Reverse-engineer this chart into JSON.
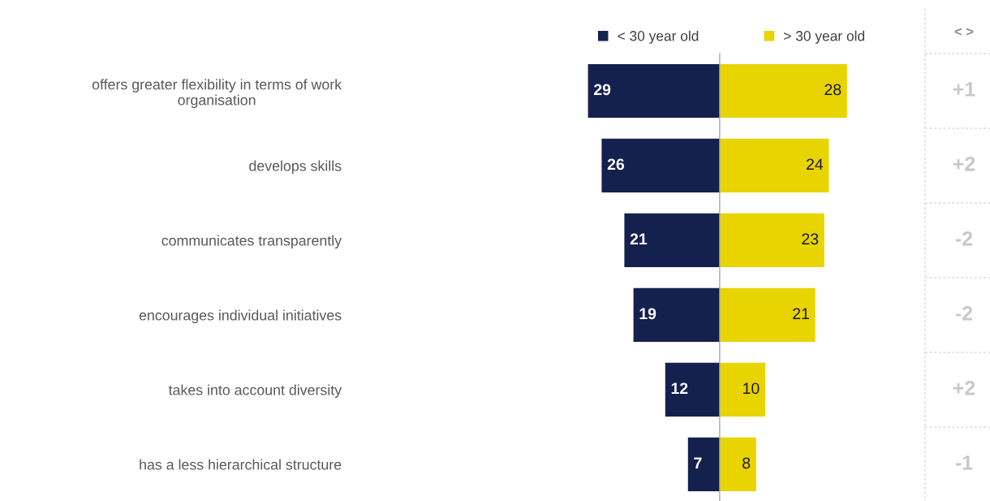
{
  "chart_data": [
    {
      "type": "bar",
      "orientation": "horizontal",
      "categories": [
        "offers greater flexibility in terms of work\norganisation",
        "develops skills",
        "communicates transparently",
        "encourages individual initiatives",
        "takes into account diversity",
        "has a less hierarchical structure"
      ],
      "series": [
        {
          "name": "< 30 year old",
          "color": "#14214f",
          "values": [
            29,
            26,
            21,
            19,
            12,
            7
          ]
        }
      ],
      "data_labels": true,
      "legend": "top",
      "tick_labels": "y"
    },
    {
      "type": "bar",
      "orientation": "horizontal",
      "categories": [
        null,
        null,
        null,
        null,
        null,
        null
      ],
      "series": [
        {
          "name": "> 30 year old",
          "color": "#e8d400",
          "values": [
            28,
            24,
            23,
            21,
            10,
            8
          ]
        }
      ],
      "data_labels": true,
      "legend": "top",
      "tick_labels": false,
      "annotations": [
        "< >",
        "+1",
        "+2",
        "-2",
        "-2",
        "+2",
        "-1"
      ]
    }
  ]
}
